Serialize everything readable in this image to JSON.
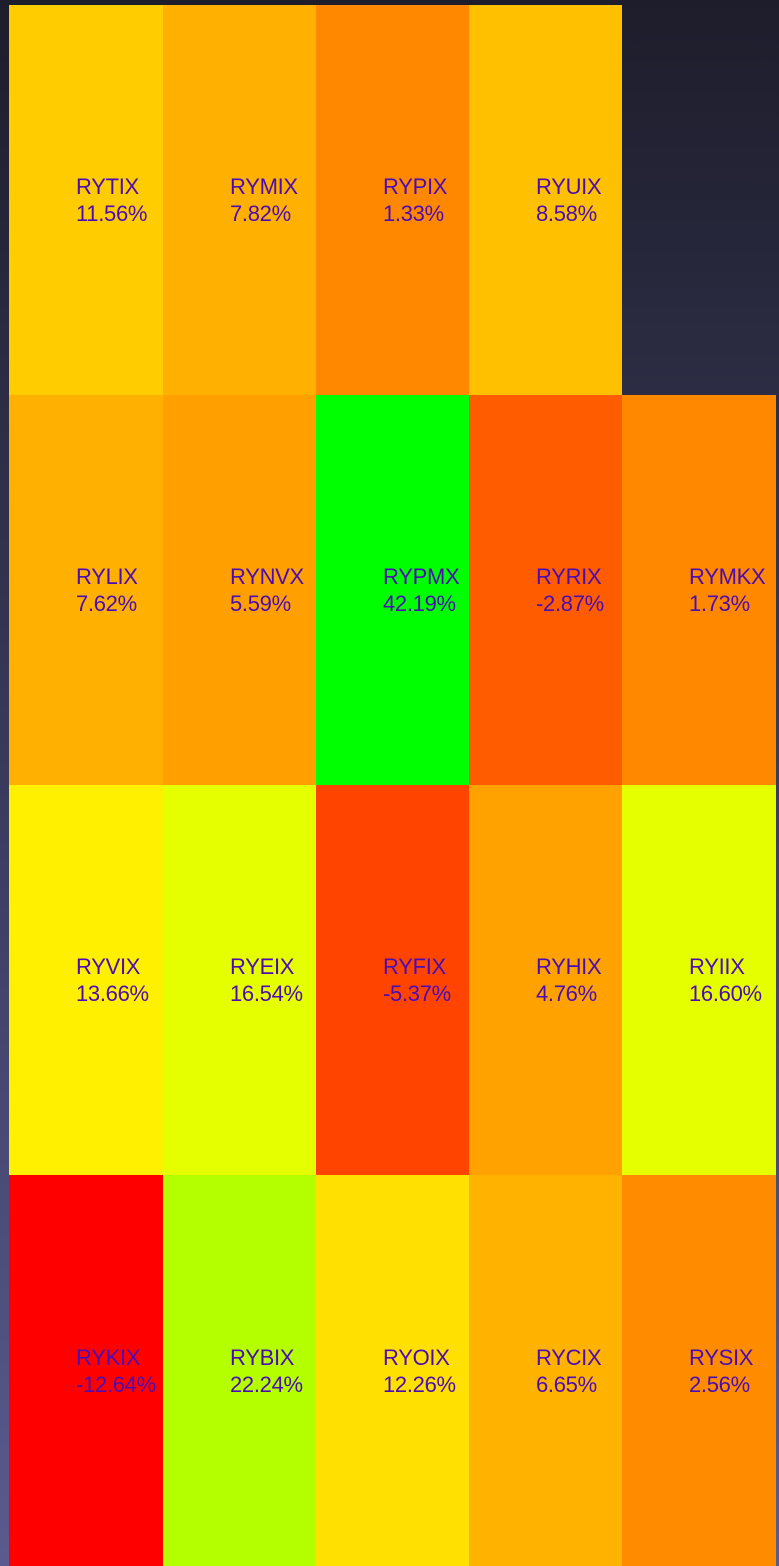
{
  "chart_data": {
    "type": "heatmap",
    "rows": [
      [
        {
          "ticker": "RYTIX",
          "value": "11.56%",
          "color": "#ffcc00"
        },
        {
          "ticker": "RYMIX",
          "value": "7.82%",
          "color": "#ffb000"
        },
        {
          "ticker": "RYPIX",
          "value": "1.33%",
          "color": "#ff8800"
        },
        {
          "ticker": "RYUIX",
          "value": "8.58%",
          "color": "#ffc000"
        }
      ],
      [
        {
          "ticker": "RYLIX",
          "value": "7.62%",
          "color": "#ffb000"
        },
        {
          "ticker": "RYNVX",
          "value": "5.59%",
          "color": "#ffa000"
        },
        {
          "ticker": "RYPMX",
          "value": "42.19%",
          "color": "#00ff00"
        },
        {
          "ticker": "RYRIX",
          "value": "-2.87%",
          "color": "#ff5c00"
        },
        {
          "ticker": "RYMKX",
          "value": "1.73%",
          "color": "#ff8800"
        }
      ],
      [
        {
          "ticker": "RYVIX",
          "value": "13.66%",
          "color": "#fff000"
        },
        {
          "ticker": "RYEIX",
          "value": "16.54%",
          "color": "#e6ff00"
        },
        {
          "ticker": "RYFIX",
          "value": "-5.37%",
          "color": "#ff4400"
        },
        {
          "ticker": "RYHIX",
          "value": "4.76%",
          "color": "#ffa200"
        },
        {
          "ticker": "RYIIX",
          "value": "16.60%",
          "color": "#e6ff00"
        }
      ],
      [
        {
          "ticker": "RYKIX",
          "value": "-12.64%",
          "color": "#ff0000"
        },
        {
          "ticker": "RYBIX",
          "value": "22.24%",
          "color": "#b4ff00"
        },
        {
          "ticker": "RYOIX",
          "value": "12.26%",
          "color": "#ffe000"
        },
        {
          "ticker": "RYCIX",
          "value": "6.65%",
          "color": "#ffb200"
        },
        {
          "ticker": "RYSIX",
          "value": "2.56%",
          "color": "#ff8c00"
        }
      ]
    ]
  }
}
